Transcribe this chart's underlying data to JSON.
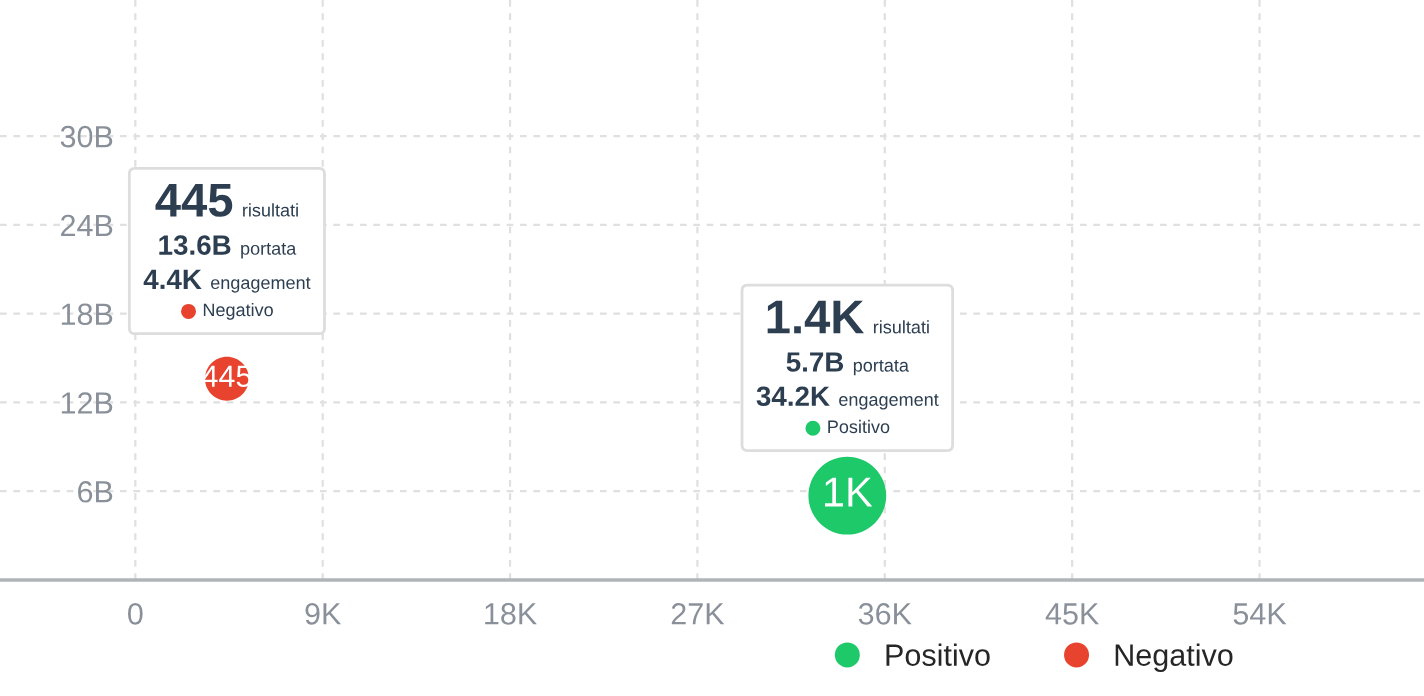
{
  "chart_data": {
    "type": "bubble",
    "series": [
      {
        "name": "Positivo",
        "color": "#1ec96a",
        "x": [
          34200
        ],
        "values": [
          5700000000
        ],
        "sizes": [
          1400
        ],
        "value_labels": [
          "1K"
        ]
      },
      {
        "name": "Negativo",
        "color": "#e8432e",
        "x": [
          4400
        ],
        "values": [
          13600000000
        ],
        "sizes": [
          445
        ],
        "value_labels": [
          "445"
        ]
      }
    ],
    "xlim": [
      -6500,
      61900
    ],
    "ylim": [
      0,
      39200000000
    ],
    "xticks": [
      {
        "value": 0,
        "label": "0"
      },
      {
        "value": 9000,
        "label": "9K"
      },
      {
        "value": 18000,
        "label": "18K"
      },
      {
        "value": 27000,
        "label": "27K"
      },
      {
        "value": 36000,
        "label": "36K"
      },
      {
        "value": 45000,
        "label": "45K"
      },
      {
        "value": 54000,
        "label": "54K"
      }
    ],
    "yticks": [
      {
        "value": 6000000000,
        "label": "6B"
      },
      {
        "value": 12000000000,
        "label": "12B"
      },
      {
        "value": 18000000000,
        "label": "18B"
      },
      {
        "value": 24000000000,
        "label": "24B"
      },
      {
        "value": 30000000000,
        "label": "30B"
      }
    ],
    "annotations": [
      "1.4K",
      "risultati",
      "5.7B",
      "portata",
      "34.2K",
      "engagement",
      "Positivo",
      "445",
      "risultati",
      "13.6B",
      "portata",
      "4.4K",
      "engagement",
      "Negativo"
    ],
    "grid": true,
    "legend": "bottom",
    "marker": "circle"
  }
}
